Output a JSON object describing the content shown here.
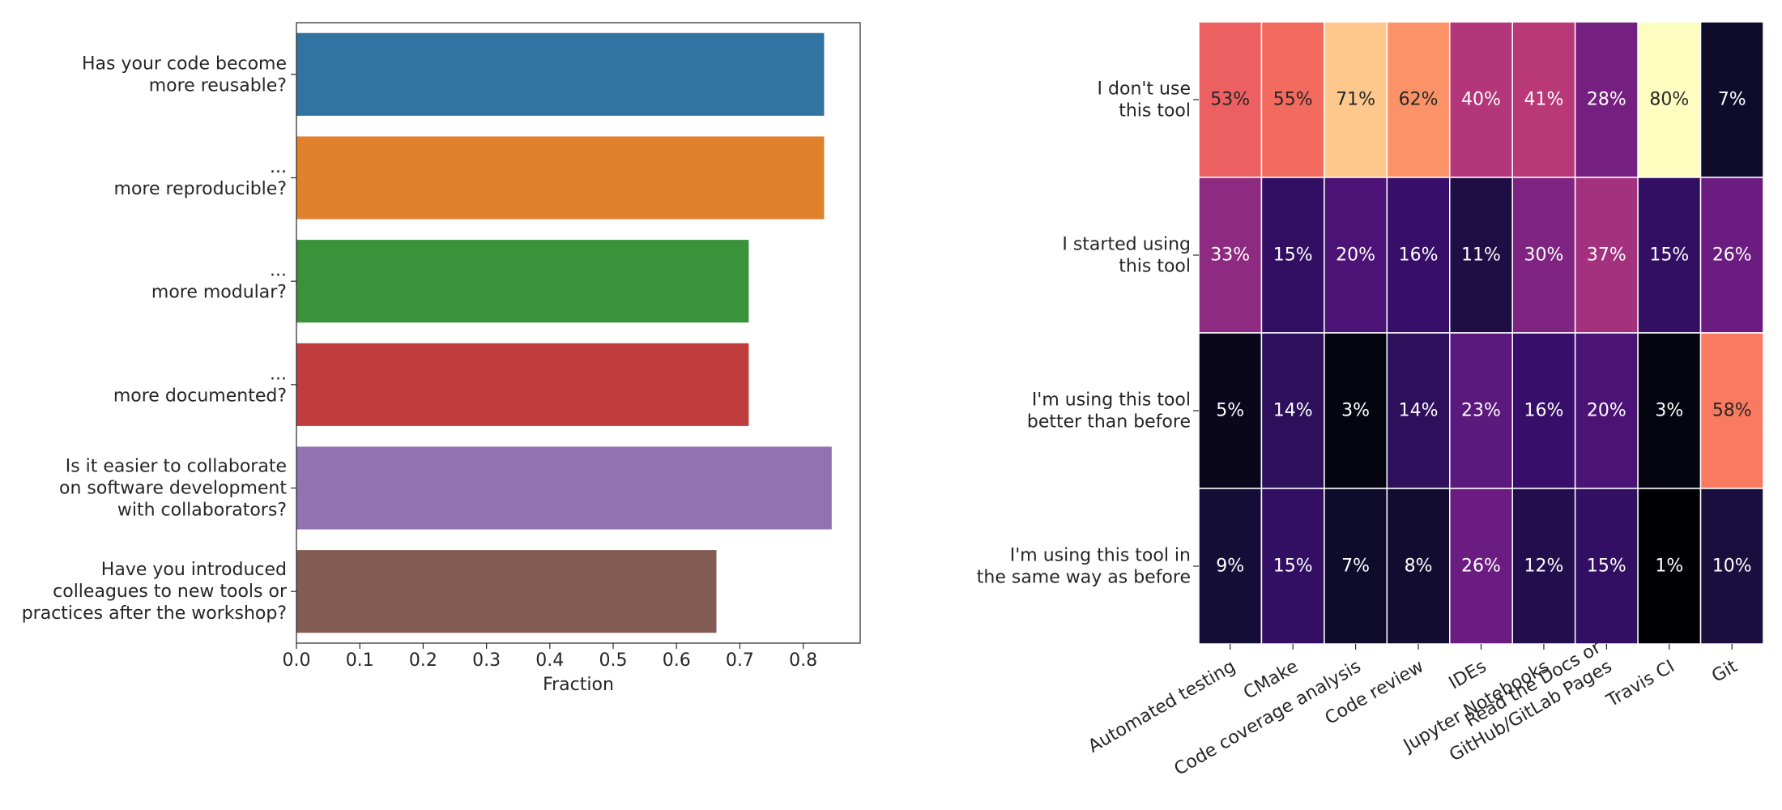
{
  "chart_data": [
    {
      "type": "bar",
      "orientation": "horizontal",
      "categories": [
        "Has your code become\nmore reusable?",
        "...\nmore reproducible?",
        "...\nmore modular?",
        "...\nmore documented?",
        "Is it easier to collaborate\non software development\nwith collaborators?",
        "Have you introduced\ncolleagues to new tools or\npractices after the workshop?"
      ],
      "values": [
        0.833,
        0.833,
        0.714,
        0.714,
        0.845,
        0.663
      ],
      "colors": [
        "#3274a1",
        "#e1812c",
        "#3a923a",
        "#c03d3e",
        "#9372b2",
        "#845b53"
      ],
      "xlabel": "Fraction",
      "xlim": [
        0,
        0.89
      ],
      "xticks": [
        "0.0",
        "0.1",
        "0.2",
        "0.3",
        "0.4",
        "0.5",
        "0.6",
        "0.7",
        "0.8"
      ],
      "grid": false
    },
    {
      "type": "heatmap",
      "colormap": "magma",
      "rows": [
        "I don't use\nthis tool",
        "I started using\nthis tool",
        "I'm using this tool\nbetter than before",
        "I'm using this tool in\nthe same way as before"
      ],
      "columns": [
        "Automated testing",
        "CMake",
        "Code coverage analysis",
        "Code review",
        "IDEs",
        "Jupyter Notebooks",
        "Read the Docs or\nGitHub/GitLab Pages",
        "Travis CI",
        "Git"
      ],
      "values": [
        [
          53,
          55,
          71,
          62,
          40,
          41,
          28,
          80,
          7
        ],
        [
          33,
          15,
          20,
          16,
          11,
          30,
          37,
          15,
          26
        ],
        [
          5,
          14,
          3,
          14,
          23,
          16,
          20,
          3,
          58
        ],
        [
          9,
          15,
          7,
          8,
          26,
          12,
          15,
          1,
          10
        ]
      ],
      "value_format": "%",
      "colorbar": false
    }
  ]
}
